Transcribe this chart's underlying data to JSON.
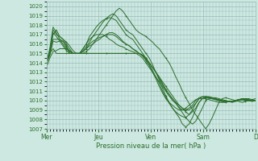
{
  "bg_color": "#cce8e0",
  "grid_color": "#99bbbb",
  "line_color": "#2d6e2d",
  "xlabel": "Pression niveau de la mer( hPa )",
  "ylim": [
    1007,
    1020.5
  ],
  "yticks": [
    1007,
    1008,
    1009,
    1010,
    1011,
    1012,
    1013,
    1014,
    1015,
    1016,
    1017,
    1018,
    1019,
    1020
  ],
  "xtick_labels": [
    "Mer",
    "Jeu",
    "Ven",
    "Sam",
    "D"
  ],
  "xtick_positions": [
    0,
    0.25,
    0.5,
    0.75,
    1.0
  ],
  "series": [
    [
      1014.0,
      1015.2,
      1017.5,
      1017.0,
      1016.8,
      1016.5,
      1016.2,
      1015.8,
      1015.3,
      1015.0,
      1015.0,
      1015.0,
      1015.2,
      1015.5,
      1016.0,
      1016.5,
      1017.0,
      1017.5,
      1018.0,
      1018.5,
      1019.0,
      1019.5,
      1019.8,
      1019.5,
      1019.0,
      1018.5,
      1018.0,
      1017.5,
      1017.2,
      1017.0,
      1016.8,
      1016.5,
      1016.2,
      1015.8,
      1015.5,
      1015.0,
      1014.5,
      1014.0,
      1013.3,
      1012.5,
      1011.8,
      1011.0,
      1010.3,
      1009.7,
      1009.0,
      1008.5,
      1008.0,
      1007.5,
      1007.0,
      1007.5,
      1008.2,
      1009.0,
      1009.8,
      1010.2,
      1010.3,
      1010.2,
      1010.1,
      1010.0,
      1009.9,
      1009.8,
      1009.9,
      1010.0,
      1010.1,
      1010.2
    ],
    [
      1014.0,
      1015.0,
      1017.2,
      1016.8,
      1016.3,
      1015.8,
      1015.3,
      1015.0,
      1015.0,
      1015.0,
      1015.0,
      1015.5,
      1016.0,
      1016.8,
      1017.3,
      1017.8,
      1018.2,
      1018.5,
      1018.7,
      1018.8,
      1018.7,
      1018.5,
      1018.0,
      1017.5,
      1017.0,
      1016.7,
      1016.5,
      1016.0,
      1015.5,
      1015.0,
      1014.5,
      1014.0,
      1013.5,
      1013.0,
      1012.5,
      1011.8,
      1011.2,
      1010.7,
      1010.2,
      1009.7,
      1009.2,
      1008.7,
      1008.2,
      1007.8,
      1007.5,
      1007.8,
      1008.5,
      1009.2,
      1010.0,
      1010.2,
      1010.3,
      1010.3,
      1010.2,
      1010.1,
      1010.0,
      1009.9,
      1009.8,
      1009.9,
      1010.0,
      1010.1,
      1010.2,
      1010.2,
      1010.1,
      1010.0
    ],
    [
      1014.0,
      1014.8,
      1016.5,
      1016.5,
      1016.5,
      1016.3,
      1015.8,
      1015.2,
      1015.0,
      1015.0,
      1015.0,
      1015.2,
      1015.5,
      1016.0,
      1016.3,
      1016.5,
      1016.7,
      1016.8,
      1017.0,
      1017.0,
      1017.0,
      1016.8,
      1016.5,
      1016.2,
      1016.0,
      1015.8,
      1015.5,
      1015.2,
      1015.0,
      1014.8,
      1014.5,
      1014.0,
      1013.5,
      1013.0,
      1012.5,
      1012.0,
      1011.5,
      1011.0,
      1010.5,
      1010.0,
      1009.5,
      1009.2,
      1008.8,
      1008.5,
      1008.8,
      1009.2,
      1009.8,
      1010.2,
      1010.4,
      1010.4,
      1010.3,
      1010.2,
      1010.1,
      1010.0,
      1010.0,
      1009.9,
      1009.9,
      1010.0,
      1010.1,
      1010.1,
      1010.1,
      1010.0,
      1010.0,
      1010.0
    ],
    [
      1014.0,
      1014.8,
      1016.3,
      1016.2,
      1016.3,
      1016.3,
      1015.7,
      1015.0,
      1015.0,
      1015.0,
      1015.0,
      1015.5,
      1016.0,
      1016.5,
      1016.8,
      1017.0,
      1017.0,
      1017.0,
      1016.8,
      1016.5,
      1016.3,
      1016.0,
      1015.8,
      1015.7,
      1015.5,
      1015.3,
      1015.2,
      1015.0,
      1014.8,
      1014.5,
      1014.0,
      1013.5,
      1013.0,
      1012.5,
      1012.0,
      1011.5,
      1011.0,
      1010.5,
      1010.2,
      1009.8,
      1009.5,
      1009.2,
      1009.0,
      1009.0,
      1009.3,
      1009.7,
      1010.2,
      1010.4,
      1010.4,
      1010.4,
      1010.3,
      1010.2,
      1010.1,
      1010.0,
      1009.9,
      1009.9,
      1009.9,
      1010.0,
      1010.1,
      1010.1,
      1010.1,
      1010.0,
      1010.0,
      1010.0
    ],
    [
      1014.0,
      1015.0,
      1015.5,
      1015.0,
      1015.0,
      1015.0,
      1015.0,
      1015.0,
      1015.0,
      1015.0,
      1015.0,
      1015.0,
      1015.0,
      1015.0,
      1015.0,
      1015.0,
      1015.0,
      1015.0,
      1015.0,
      1015.0,
      1015.0,
      1015.0,
      1015.0,
      1015.0,
      1015.0,
      1015.0,
      1015.0,
      1015.0,
      1015.0,
      1014.8,
      1014.5,
      1014.0,
      1013.5,
      1013.0,
      1012.3,
      1011.7,
      1011.0,
      1010.5,
      1010.0,
      1009.7,
      1009.3,
      1009.0,
      1009.0,
      1009.2,
      1009.5,
      1010.0,
      1010.3,
      1010.4,
      1010.4,
      1010.3,
      1010.2,
      1010.1,
      1010.0,
      1009.9,
      1009.9,
      1009.9,
      1009.9,
      1010.0,
      1010.1,
      1010.1,
      1010.0,
      1010.0,
      1010.0,
      1010.0
    ],
    [
      1013.5,
      1014.5,
      1015.2,
      1015.3,
      1015.5,
      1015.5,
      1015.5,
      1015.3,
      1015.0,
      1015.0,
      1015.0,
      1015.0,
      1015.0,
      1015.0,
      1015.0,
      1015.0,
      1015.0,
      1015.0,
      1015.0,
      1015.0,
      1015.0,
      1015.0,
      1015.0,
      1015.0,
      1015.0,
      1015.0,
      1015.0,
      1015.0,
      1015.0,
      1014.8,
      1014.3,
      1013.7,
      1013.0,
      1012.3,
      1011.5,
      1010.8,
      1010.2,
      1009.8,
      1009.5,
      1009.2,
      1009.0,
      1009.0,
      1009.2,
      1009.5,
      1009.8,
      1010.1,
      1010.2,
      1010.2,
      1010.2,
      1010.1,
      1010.0,
      1009.9,
      1009.8,
      1009.8,
      1009.8,
      1009.9,
      1009.9,
      1010.0,
      1010.1,
      1010.1,
      1010.0,
      1010.0,
      1009.9,
      1010.0
    ],
    [
      1014.0,
      1015.3,
      1017.0,
      1017.5,
      1016.8,
      1016.5,
      1016.0,
      1015.5,
      1015.0,
      1015.0,
      1015.0,
      1015.2,
      1015.5,
      1015.8,
      1016.0,
      1016.3,
      1016.5,
      1016.8,
      1017.0,
      1017.2,
      1017.2,
      1017.0,
      1016.7,
      1016.3,
      1016.0,
      1015.8,
      1015.5,
      1015.3,
      1015.0,
      1014.7,
      1014.3,
      1013.8,
      1013.2,
      1012.5,
      1011.8,
      1011.0,
      1010.3,
      1009.7,
      1009.2,
      1008.8,
      1008.5,
      1008.3,
      1008.2,
      1008.5,
      1009.0,
      1009.7,
      1010.2,
      1010.4,
      1010.4,
      1010.3,
      1010.2,
      1010.1,
      1010.0,
      1009.9,
      1009.9,
      1009.9,
      1009.9,
      1010.0,
      1010.1,
      1010.2,
      1010.2,
      1010.1,
      1010.0,
      1010.0
    ],
    [
      1014.0,
      1015.5,
      1017.8,
      1017.2,
      1016.5,
      1016.0,
      1015.5,
      1015.2,
      1015.0,
      1015.0,
      1015.0,
      1015.3,
      1015.7,
      1016.2,
      1016.8,
      1017.3,
      1017.8,
      1018.3,
      1018.7,
      1019.0,
      1019.2,
      1019.0,
      1018.5,
      1018.0,
      1017.5,
      1017.2,
      1017.0,
      1016.5,
      1016.0,
      1015.5,
      1015.0,
      1014.5,
      1013.8,
      1013.0,
      1012.2,
      1011.3,
      1010.5,
      1009.8,
      1009.2,
      1008.7,
      1008.2,
      1007.5,
      1007.2,
      1007.5,
      1008.2,
      1009.0,
      1009.8,
      1010.2,
      1010.3,
      1010.3,
      1010.2,
      1010.1,
      1010.0,
      1009.9,
      1009.9,
      1009.9,
      1009.9,
      1010.0,
      1010.1,
      1010.2,
      1010.2,
      1010.1,
      1010.0,
      1010.0
    ]
  ]
}
